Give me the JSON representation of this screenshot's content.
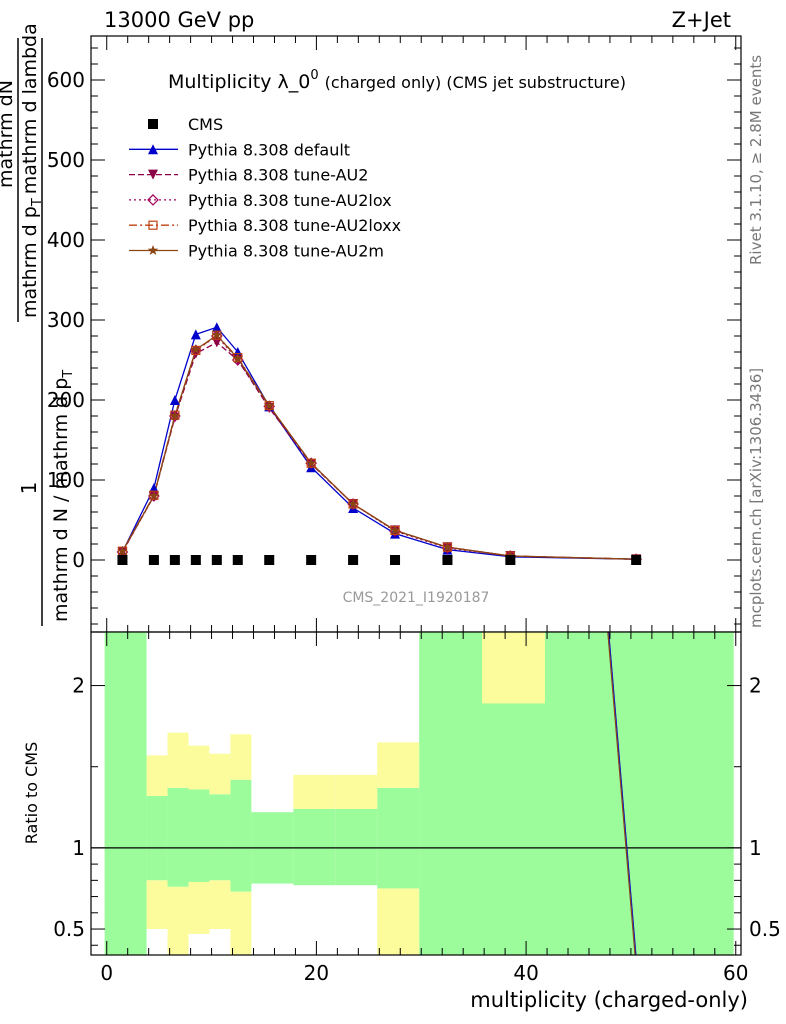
{
  "header": {
    "left": "13000 GeV pp",
    "right": "Z+Jet"
  },
  "side_labels": {
    "rivet": "Rivet 3.1.10, ≥ 2.8M events",
    "mcplots": "mcplots.cern.ch [arXiv:1306.3436]"
  },
  "watermark": "CMS_2021_I1920187",
  "chart_data": [
    {
      "type": "line",
      "title": "Multiplicity λ_0",
      "title_sup": "0",
      "title_suffix": "(charged only) (CMS jet substructure)",
      "ylabel_line1": "mathrm dN",
      "ylabel_line2": "1",
      "ylabel_line3": "mathrm d N / mathrm d p",
      "ylabel_sub": "T",
      "ylabel_line3b": "mathrm d p",
      "ylabel_line3c": "mathrm d lambda",
      "ylabel_line3d": "mathrm d",
      "ylabel_line3e": "mathrm d lambda",
      "ylabel_num": "mathrm d N",
      "ylim": [
        -90,
        655
      ],
      "yticks": [
        0,
        100,
        200,
        300,
        400,
        500,
        600
      ],
      "ytick_labels": [
        "0",
        "100",
        "200",
        "300",
        "400",
        "500",
        "600"
      ],
      "grid": false,
      "legend_position": "top-left",
      "legend": [
        {
          "label": "CMS",
          "color": "#000000",
          "marker": "square",
          "style": "none"
        },
        {
          "label": "Pythia 8.308 default",
          "color": "#0000cc",
          "marker": "triangle-up",
          "style": "solid"
        },
        {
          "label": "Pythia 8.308 tune-AU2",
          "color": "#8b0045",
          "marker": "triangle-down",
          "style": "dashed"
        },
        {
          "label": "Pythia 8.308 tune-AU2lox",
          "color": "#a0005a",
          "marker": "diamond-open",
          "style": "dotted"
        },
        {
          "label": "Pythia 8.308 tune-AU2loxx",
          "color": "#c04010",
          "marker": "square-open",
          "style": "dashdot"
        },
        {
          "label": "Pythia 8.308 tune-AU2m",
          "color": "#8b4513",
          "marker": "star",
          "style": "solid"
        }
      ],
      "cms_points": [
        {
          "x": 1.5,
          "y": 0
        },
        {
          "x": 4.5,
          "y": 0
        },
        {
          "x": 6.5,
          "y": 0
        },
        {
          "x": 8.5,
          "y": 0
        },
        {
          "x": 10.5,
          "y": 0
        },
        {
          "x": 12.5,
          "y": 0
        },
        {
          "x": 15.5,
          "y": 0
        },
        {
          "x": 19.5,
          "y": 0
        },
        {
          "x": 23.5,
          "y": 0
        },
        {
          "x": 27.5,
          "y": 0
        },
        {
          "x": 32.5,
          "y": 0
        },
        {
          "x": 38.5,
          "y": 0
        },
        {
          "x": 50.5,
          "y": 0
        }
      ],
      "x": [
        1.5,
        4.5,
        6.5,
        8.5,
        10.5,
        12.5,
        15.5,
        19.5,
        23.5,
        27.5,
        32.5,
        38.5,
        50.5
      ],
      "series": [
        {
          "name": "Pythia 8.308 default",
          "values": [
            10,
            90,
            200,
            282,
            291,
            260,
            192,
            116,
            65,
            33,
            13,
            4,
            1
          ]
        },
        {
          "name": "Pythia 8.308 tune-AU2",
          "values": [
            10,
            80,
            178,
            258,
            272,
            250,
            190,
            120,
            70,
            37,
            16,
            5,
            1
          ]
        },
        {
          "name": "Pythia 8.308 tune-AU2lox",
          "values": [
            10,
            80,
            180,
            262,
            280,
            250,
            192,
            121,
            70,
            36,
            15,
            5,
            1
          ]
        },
        {
          "name": "Pythia 8.308 tune-AU2loxx",
          "values": [
            11,
            81,
            181,
            262,
            281,
            253,
            193,
            121,
            70,
            37,
            16,
            5,
            1
          ]
        },
        {
          "name": "Pythia 8.308 tune-AU2m",
          "values": [
            11,
            80,
            180,
            263,
            281,
            252,
            193,
            121,
            70,
            37,
            16,
            5,
            1
          ]
        }
      ]
    },
    {
      "type": "area",
      "ylabel": "Ratio to CMS",
      "xlabel": "multiplicity (charged-only)",
      "xlim": [
        -1.5,
        60.5
      ],
      "ylim": [
        0.34,
        2.33
      ],
      "xticks": [
        0,
        20,
        40,
        60
      ],
      "xtick_labels": [
        "0",
        "20",
        "40",
        "60"
      ],
      "yticks": [
        0.5,
        1,
        2
      ],
      "ytick_labels": [
        "0.5",
        "1",
        "2"
      ],
      "green_band": [
        {
          "x0": -0.2,
          "x1": 3.8,
          "lo": 0.34,
          "hi": 2.33
        },
        {
          "x0": 3.8,
          "x1": 5.8,
          "lo": 0.8,
          "hi": 1.32
        },
        {
          "x0": 5.8,
          "x1": 7.8,
          "lo": 0.76,
          "hi": 1.37
        },
        {
          "x0": 7.8,
          "x1": 9.8,
          "lo": 0.79,
          "hi": 1.36
        },
        {
          "x0": 9.8,
          "x1": 11.8,
          "lo": 0.8,
          "hi": 1.33
        },
        {
          "x0": 11.8,
          "x1": 13.8,
          "lo": 0.73,
          "hi": 1.42
        },
        {
          "x0": 13.8,
          "x1": 17.8,
          "lo": 0.78,
          "hi": 1.22
        },
        {
          "x0": 17.8,
          "x1": 21.8,
          "lo": 0.77,
          "hi": 1.24
        },
        {
          "x0": 21.8,
          "x1": 25.8,
          "lo": 0.77,
          "hi": 1.24
        },
        {
          "x0": 25.8,
          "x1": 29.8,
          "lo": 0.75,
          "hi": 1.37
        },
        {
          "x0": 29.8,
          "x1": 59.8,
          "lo": 0.34,
          "hi": 2.33
        }
      ],
      "yellow_band": [
        {
          "x0": 3.8,
          "x1": 5.8,
          "lo": 0.5,
          "hi": 1.57
        },
        {
          "x0": 5.8,
          "x1": 7.8,
          "lo": 0.34,
          "hi": 1.71
        },
        {
          "x0": 7.8,
          "x1": 9.8,
          "lo": 0.47,
          "hi": 1.63
        },
        {
          "x0": 9.8,
          "x1": 11.8,
          "lo": 0.5,
          "hi": 1.58
        },
        {
          "x0": 11.8,
          "x1": 13.8,
          "lo": 0.34,
          "hi": 1.7
        },
        {
          "x0": 13.8,
          "x1": 17.8,
          "lo": 0.89,
          "hi": 1.18
        },
        {
          "x0": 17.8,
          "x1": 21.8,
          "lo": 0.85,
          "hi": 1.45
        },
        {
          "x0": 21.8,
          "x1": 25.8,
          "lo": 0.84,
          "hi": 1.45
        },
        {
          "x0": 25.8,
          "x1": 29.8,
          "lo": 0.34,
          "hi": 1.65
        },
        {
          "x0": 35.8,
          "x1": 41.8,
          "lo": 1.89,
          "hi": 2.33
        }
      ],
      "mc_ratio_line": {
        "x": [
          47.8,
          50.4
        ],
        "y": [
          2.33,
          0.34
        ]
      }
    }
  ]
}
